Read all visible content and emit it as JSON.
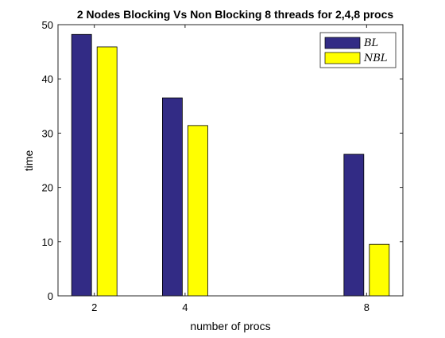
{
  "chart_data": {
    "type": "bar",
    "title": "2 Nodes Blocking Vs Non Blocking 8 threads for 2,4,8 procs",
    "xlabel": "number of procs",
    "ylabel": "time",
    "x": [
      2,
      4,
      8
    ],
    "xlim": [
      1.2,
      8.8
    ],
    "xticks": [
      "2",
      "4",
      "8"
    ],
    "ylim": [
      0,
      50
    ],
    "yticks": [
      "0",
      "10",
      "20",
      "30",
      "40",
      "50"
    ],
    "grid": false,
    "legend_position": "top-right",
    "series": [
      {
        "name": "BL",
        "color": "#322B85",
        "values": [
          48.2,
          36.5,
          26.1
        ]
      },
      {
        "name": "NBL",
        "color": "#FFFF00",
        "values": [
          45.9,
          31.4,
          9.5
        ]
      }
    ]
  }
}
